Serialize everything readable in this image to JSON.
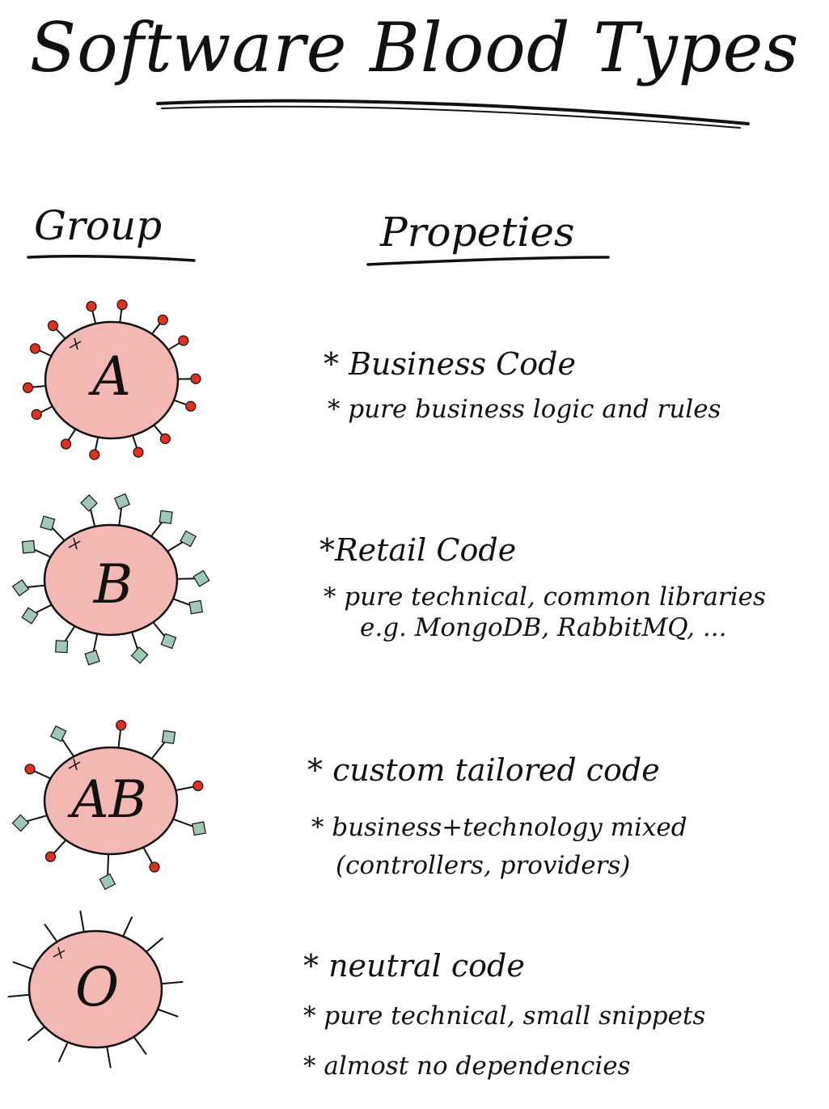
{
  "title": "Software Blood Types",
  "headers": {
    "group": "Group",
    "properties": "Propeties"
  },
  "colors": {
    "cell_fill": "#f4b8b4",
    "ink": "#111111",
    "antigen_a": "#e03020",
    "antigen_b": "#9fc9b3"
  },
  "groups": [
    {
      "label": "A",
      "antigens": "circle",
      "properties_title": "* Business Code",
      "properties": [
        "* pure business logic and rules"
      ]
    },
    {
      "label": "B",
      "antigens": "diamond",
      "properties_title": "*Retail Code",
      "properties": [
        "* pure technical, common libraries",
        "e.g. MongoDB, RabbitMQ, ..."
      ]
    },
    {
      "label": "AB",
      "antigens": "mixed",
      "properties_title": "* custom tailored code",
      "properties": [
        "* business+technology mixed",
        "(controllers, providers)"
      ]
    },
    {
      "label": "O",
      "antigens": "none",
      "properties_title": "* neutral code",
      "properties": [
        "* pure technical, small snippets",
        "* almost no dependencies"
      ]
    }
  ]
}
